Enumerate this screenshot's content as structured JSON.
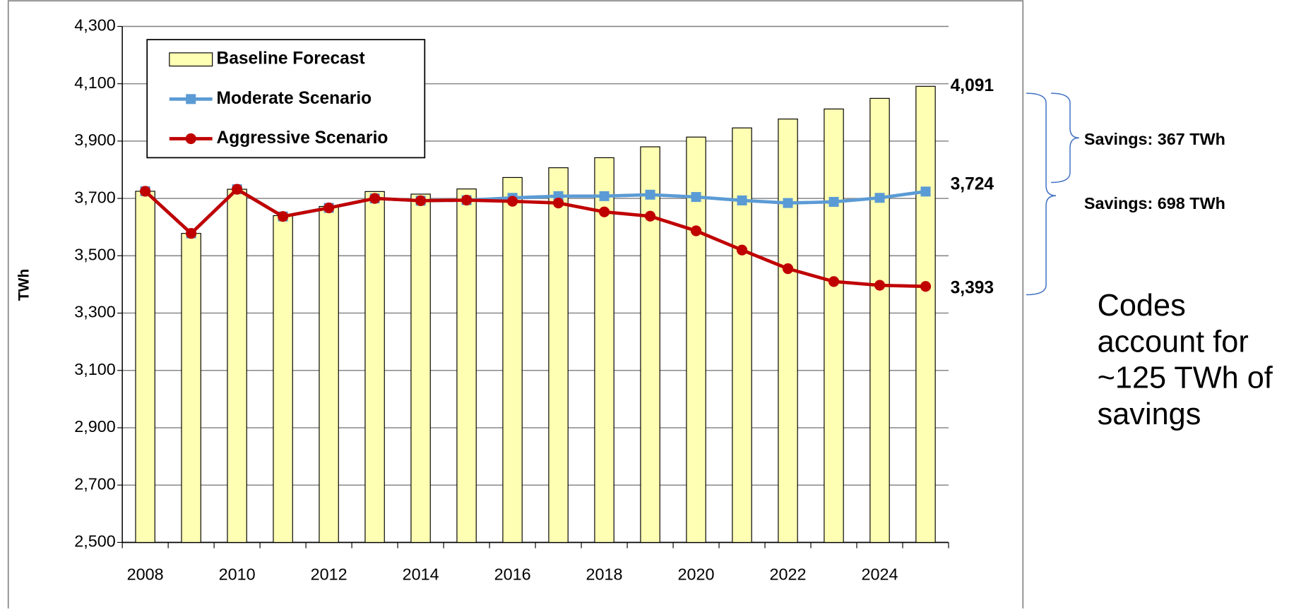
{
  "chart_data": {
    "type": "bar",
    "y_label": "TWh",
    "x": [
      2008,
      2009,
      2010,
      2011,
      2012,
      2013,
      2014,
      2015,
      2016,
      2017,
      2018,
      2019,
      2020,
      2021,
      2022,
      2023,
      2024,
      2025
    ],
    "xlim": [
      2007.5,
      2025.5
    ],
    "xticks": [
      2008,
      2010,
      2012,
      2014,
      2016,
      2018,
      2020,
      2022,
      2024
    ],
    "ylim": [
      2500,
      4300
    ],
    "yticks": [
      {
        "value": 2500,
        "label": "2,500"
      },
      {
        "value": 2700,
        "label": "2,700"
      },
      {
        "value": 2900,
        "label": "2,900"
      },
      {
        "value": 3100,
        "label": "3,100"
      },
      {
        "value": 3300,
        "label": "3,300"
      },
      {
        "value": 3500,
        "label": "3,500"
      },
      {
        "value": 3700,
        "label": "3,700"
      },
      {
        "value": 3900,
        "label": "3,900"
      },
      {
        "value": 4100,
        "label": "4,100"
      },
      {
        "value": 4300,
        "label": "4,300"
      }
    ],
    "grid": true,
    "legend": "upper left",
    "series": [
      {
        "name": "Baseline Forecast",
        "type": "bar",
        "color": "#ffffb3",
        "edge_color": "#000000",
        "values": [
          3725,
          3578,
          3732,
          3640,
          3672,
          3724,
          3715,
          3733,
          3773,
          3807,
          3842,
          3880,
          3914,
          3946,
          3977,
          4012,
          4049,
          4091
        ],
        "value_labels": [
          null,
          null,
          null,
          null,
          null,
          null,
          null,
          null,
          null,
          null,
          null,
          null,
          null,
          null,
          null,
          null,
          null,
          "4,091"
        ]
      },
      {
        "name": "Moderate Scenario",
        "type": "line",
        "marker": "square",
        "color": "#5b9bd5",
        "values": [
          3725,
          3578,
          3732,
          3637,
          3667,
          3700,
          3692,
          3694,
          3702,
          3708,
          3708,
          3713,
          3705,
          3693,
          3684,
          3688,
          3702,
          3724
        ],
        "value_labels": [
          null,
          null,
          null,
          null,
          null,
          null,
          null,
          null,
          null,
          null,
          null,
          null,
          null,
          null,
          null,
          null,
          null,
          "3,724"
        ]
      },
      {
        "name": "Aggressive Scenario",
        "type": "line",
        "marker": "circle",
        "color": "#c00000",
        "values": [
          3725,
          3578,
          3732,
          3637,
          3667,
          3700,
          3692,
          3694,
          3690,
          3684,
          3653,
          3638,
          3587,
          3520,
          3455,
          3410,
          3397,
          3393
        ],
        "value_labels": [
          null,
          null,
          null,
          null,
          null,
          null,
          null,
          null,
          null,
          null,
          null,
          null,
          null,
          null,
          null,
          null,
          null,
          "3,393"
        ]
      }
    ],
    "annotations": [
      "Savings: 367 TWh",
      "Savings: 698 TWh",
      "Codes account for ~125 TWh of savings"
    ]
  }
}
